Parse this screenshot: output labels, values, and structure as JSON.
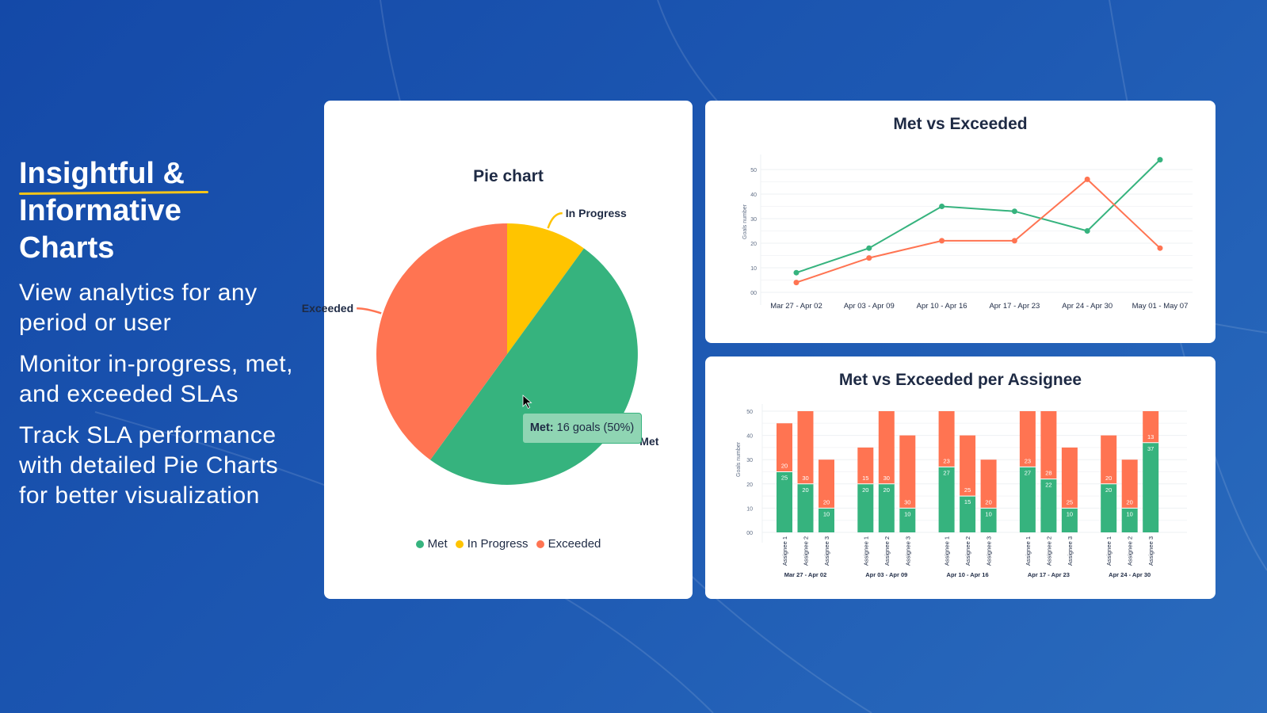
{
  "colors": {
    "met": "#36b37e",
    "in_progress": "#ffc400",
    "exceeded": "#ff7452",
    "accent_underline": "#f5c518"
  },
  "left": {
    "headline_line1": "Insightful &",
    "headline_line2": "Informative",
    "headline_line3": "Charts",
    "features": [
      "View analytics for any period or user",
      "Monitor in-progress, met, and exceeded SLAs",
      "Track SLA performance with detailed Pie Charts for better visualization"
    ]
  },
  "chart_data": [
    {
      "type": "pie",
      "title": "Pie chart",
      "slices": [
        {
          "name": "In Progress",
          "value": 10
        },
        {
          "name": "Met",
          "value": 50
        },
        {
          "name": "Exceeded",
          "value": 40
        }
      ],
      "legend": [
        "Met",
        "In Progress",
        "Exceeded"
      ],
      "legend_placement": "bottom",
      "tooltip": {
        "label": "Met:",
        "text": "16 goals (50%)"
      }
    },
    {
      "type": "line",
      "title": "Met vs Exceeded",
      "ylabel": "Goals number",
      "categories": [
        "Mar 27 - Apr 02",
        "Apr 03 - Apr 09",
        "Apr 10 - Apr 16",
        "Apr 17 - Apr 23",
        "Apr 24 - Apr 30",
        "May 01 - May 07"
      ],
      "yticks": [
        "00",
        "10",
        "20",
        "30",
        "40",
        "50"
      ],
      "ylim": [
        0,
        55
      ],
      "grid": true,
      "series": [
        {
          "key": "met",
          "values": [
            8,
            18,
            35,
            33,
            25,
            54
          ]
        },
        {
          "key": "exceeded",
          "values": [
            4,
            14,
            21,
            21,
            46,
            18
          ]
        }
      ]
    },
    {
      "type": "bar",
      "stacked": true,
      "title": "Met vs Exceeded per Assignee",
      "ylabel": "Goals number",
      "yticks": [
        "00",
        "10",
        "20",
        "30",
        "40",
        "50"
      ],
      "ylim": [
        0,
        50
      ],
      "grid": true,
      "groups": [
        {
          "label": "Mar 27 - Apr 02",
          "bars": [
            {
              "name": "Assignee 1",
              "met": 25,
              "exceeded": 20
            },
            {
              "name": "Assignee 2",
              "met": 20,
              "exceeded": 30
            },
            {
              "name": "Assignee 3",
              "met": 10,
              "exceeded": 20
            }
          ]
        },
        {
          "label": "Apr 03 - Apr 09",
          "bars": [
            {
              "name": "Assignee 1",
              "met": 20,
              "exceeded": 15
            },
            {
              "name": "Assignee 2",
              "met": 20,
              "exceeded": 30
            },
            {
              "name": "Assignee 3",
              "met": 10,
              "exceeded": 30
            }
          ]
        },
        {
          "label": "Apr 10 - Apr 16",
          "bars": [
            {
              "name": "Assignee 1",
              "met": 27,
              "exceeded": 23
            },
            {
              "name": "Assignee 2",
              "met": 15,
              "exceeded": 25
            },
            {
              "name": "Assignee 3",
              "met": 10,
              "exceeded": 20
            }
          ]
        },
        {
          "label": "Apr 17 - Apr 23",
          "bars": [
            {
              "name": "Assignee 1",
              "met": 27,
              "exceeded": 23
            },
            {
              "name": "Assignee 2",
              "met": 22,
              "exceeded": 28
            },
            {
              "name": "Assignee 3",
              "met": 10,
              "exceeded": 25
            }
          ]
        },
        {
          "label": "Apr 24 - Apr 30",
          "bars": [
            {
              "name": "Assignee 1",
              "met": 20,
              "exceeded": 20
            },
            {
              "name": "Assignee 2",
              "met": 10,
              "exceeded": 20
            },
            {
              "name": "Assignee 3",
              "met": 37,
              "exceeded": 13
            }
          ]
        }
      ]
    }
  ]
}
